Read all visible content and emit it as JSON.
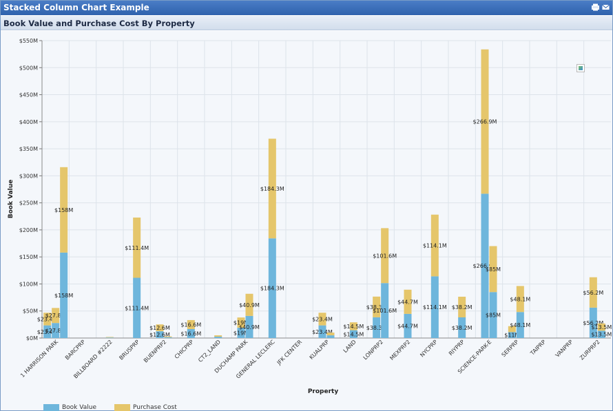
{
  "window": {
    "title": "Stacked Column Chart Example",
    "print_icon": "print-icon",
    "mail_icon": "mail-icon"
  },
  "panel": {
    "title": "Book Value and Purchase Cost By Property"
  },
  "colors": {
    "book_value": "#6eb6dc",
    "purchase_cost": "#e5c66b"
  },
  "chart_data": {
    "type": "bar",
    "stacked": true,
    "xlabel": "Property",
    "ylabel": "Book Value",
    "ylim": [
      0,
      550
    ],
    "y_ticks": [
      "$0M",
      "$50M",
      "$100M",
      "$150M",
      "$200M",
      "$250M",
      "$300M",
      "$350M",
      "$400M",
      "$450M",
      "$500M",
      "$550M"
    ],
    "categories": [
      "1 HARRISON PARK",
      "BARCPRP",
      "BILLBOARD #2222",
      "BRUSPRP",
      "BUENPRP2",
      "CHICPRP",
      "CT2_LAND",
      "DUCHAMP PARK",
      "GENERAL LECLERC",
      "JFK CENTER",
      "KUALPRP",
      "LAND",
      "LONPRP2",
      "MEXPRP2",
      "NYCPRP",
      "RIYPRP",
      "SCIENCE-PARK-E",
      "SERPRP",
      "TAIPRP",
      "VANPRP",
      "ZURPRP2"
    ],
    "legend": [
      "Book Value",
      "Purchase Cost"
    ],
    "legend_position": "bottom-left",
    "grid": true,
    "columns": [
      {
        "category": "1 HARRISON PARK",
        "book": 23.4,
        "purchase": 23.4,
        "book_label": "$23.4M",
        "purchase_label": "$23.4M"
      },
      {
        "category": "1 HARRISON PARK",
        "book": 27.8,
        "purchase": 27.8,
        "book_label": "$27.8M",
        "purchase_label": "$27.8M"
      },
      {
        "category": "1 HARRISON PARK",
        "book": 158,
        "purchase": 158,
        "book_label": "$158M",
        "purchase_label": "$158M"
      },
      {
        "category": "BILLBOARD #2222",
        "book": 1,
        "purchase": 1,
        "book_label": "",
        "purchase_label": ""
      },
      {
        "category": "BRUSPRP",
        "book": 111.4,
        "purchase": 111.4,
        "book_label": "$111.4M",
        "purchase_label": "$111.4M"
      },
      {
        "category": "BUENPRP2",
        "book": 12.6,
        "purchase": 12.6,
        "book_label": "$12.6M",
        "purchase_label": "$12.6M"
      },
      {
        "category": "BUENPRP2",
        "book": 1.5,
        "purchase": 1.5,
        "book_label": "",
        "purchase_label": ""
      },
      {
        "category": "CHICPRP",
        "book": 16.6,
        "purchase": 16.6,
        "book_label": "$16.6M",
        "purchase_label": "$16.6M"
      },
      {
        "category": "CT2_LAND",
        "book": 2.5,
        "purchase": 2.5,
        "book_label": "",
        "purchase_label": ""
      },
      {
        "category": "DUCHAMP PARK",
        "book": 19,
        "purchase": 19,
        "book_label": "$19M",
        "purchase_label": "$19M"
      },
      {
        "category": "DUCHAMP PARK",
        "book": 40.9,
        "purchase": 40.9,
        "book_label": "$40.9M",
        "purchase_label": "$40.9M"
      },
      {
        "category": "GENERAL LECLERC",
        "book": 184.3,
        "purchase": 184.3,
        "book_label": "$184.3M",
        "purchase_label": "$184.3M"
      },
      {
        "category": "KUALPRP",
        "book": 23.4,
        "purchase": 23.4,
        "book_label": "$23.4M",
        "purchase_label": "$23.4M"
      },
      {
        "category": "KUALPRP",
        "book": 5,
        "purchase": 5,
        "book_label": "",
        "purchase_label": ""
      },
      {
        "category": "LAND",
        "book": 14.5,
        "purchase": 14.5,
        "book_label": "$14.5M",
        "purchase_label": "$14.5M"
      },
      {
        "category": "LONPRP2",
        "book": 38.3,
        "purchase": 38.3,
        "book_label": "$38.3M",
        "purchase_label": "$38.3M"
      },
      {
        "category": "LONPRP2",
        "book": 101.6,
        "purchase": 101.6,
        "book_label": "$101.6M",
        "purchase_label": "$101.6M"
      },
      {
        "category": "MEXPRP2",
        "book": 44.7,
        "purchase": 44.7,
        "book_label": "$44.7M",
        "purchase_label": "$44.7M"
      },
      {
        "category": "NYCPRP",
        "book": 114.1,
        "purchase": 114.1,
        "book_label": "$114.1M",
        "purchase_label": "$114.1M"
      },
      {
        "category": "RIYPRP",
        "book": 38.2,
        "purchase": 38.2,
        "book_label": "$38.2M",
        "purchase_label": "$38.2M"
      },
      {
        "category": "SCIENCE-PARK-E",
        "book": 266.9,
        "purchase": 266.9,
        "book_label": "$266.9M",
        "purchase_label": "$266.9M"
      },
      {
        "category": "SCIENCE-PARK-E",
        "book": 85,
        "purchase": 85,
        "book_label": "$85M",
        "purchase_label": "$85M"
      },
      {
        "category": "SERPRP",
        "book": 11,
        "purchase": 11,
        "book_label": "$11M",
        "purchase_label": ""
      },
      {
        "category": "SERPRP",
        "book": 48.1,
        "purchase": 48.1,
        "book_label": "$48.1M",
        "purchase_label": "$48.1M"
      },
      {
        "category": "ZURPRP2",
        "book": 56.2,
        "purchase": 56.2,
        "book_label": "$56.2M",
        "purchase_label": "$56.2M"
      },
      {
        "category": "ZURPRP2",
        "book": 13.5,
        "purchase": 13.5,
        "book_label": "$13.5M",
        "purchase_label": "$13.5M"
      }
    ]
  }
}
